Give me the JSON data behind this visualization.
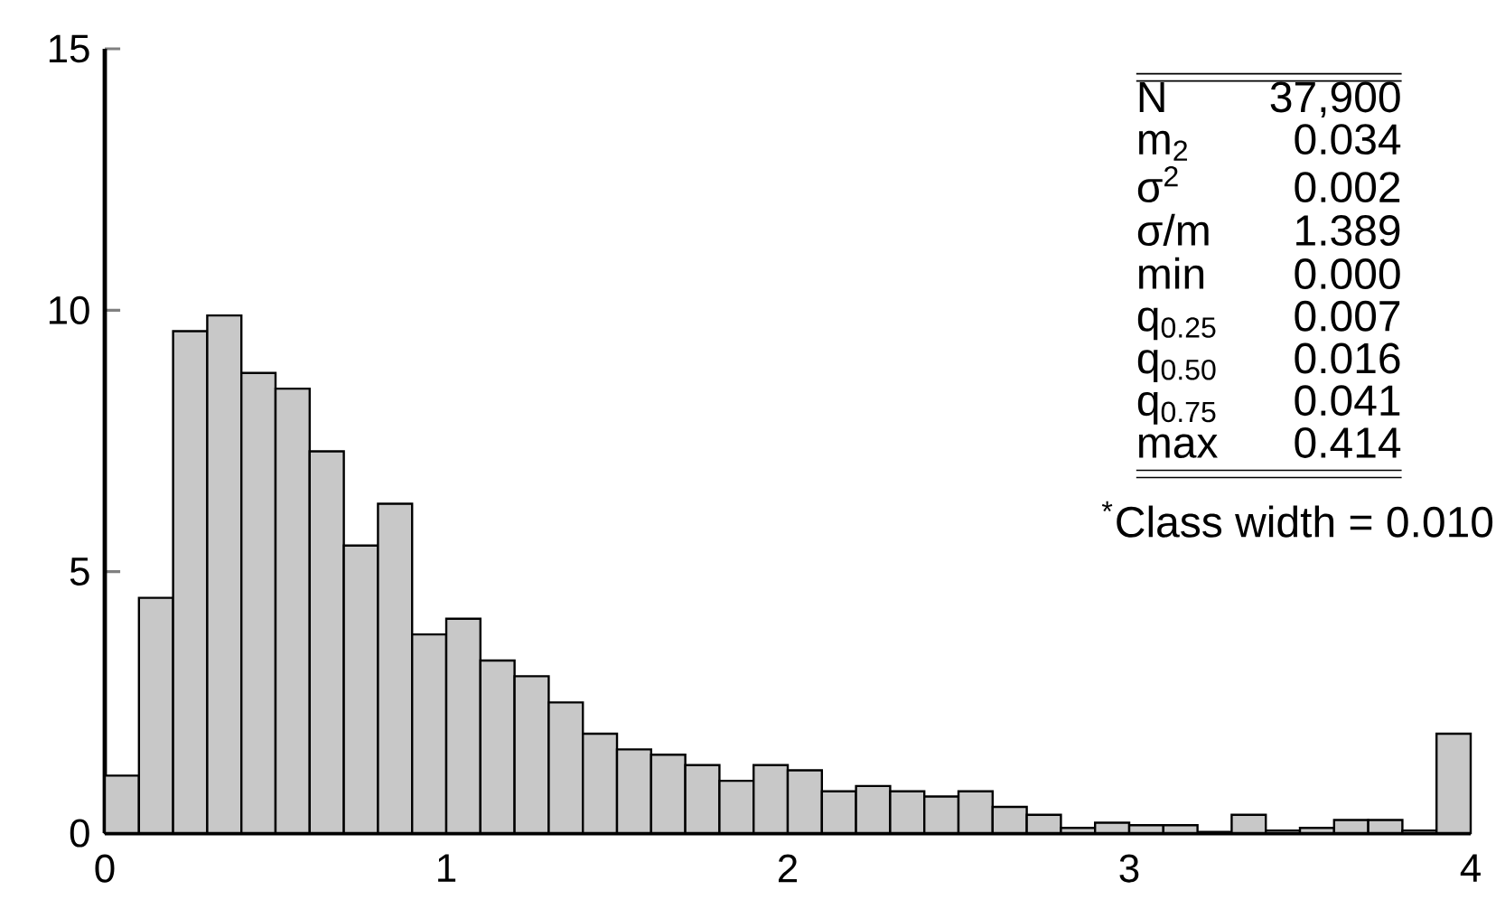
{
  "chart_data": {
    "type": "histogram",
    "bins": [
      0,
      0.1,
      0.2,
      0.3,
      0.4,
      0.5,
      0.6,
      0.7,
      0.8,
      0.9,
      1.0,
      1.1,
      1.2,
      1.3,
      1.4,
      1.5,
      1.6,
      1.7,
      1.8,
      1.9,
      2.0,
      2.1,
      2.2,
      2.3,
      2.4,
      2.5,
      2.6,
      2.7,
      2.8,
      2.9,
      3.0,
      3.1,
      3.2,
      3.3,
      3.4,
      3.5,
      3.6,
      3.7,
      3.8,
      3.9,
      4.0
    ],
    "values": [
      1.1,
      4.5,
      9.6,
      9.9,
      8.8,
      8.5,
      7.3,
      5.5,
      6.3,
      3.8,
      4.1,
      3.3,
      3.0,
      2.5,
      1.9,
      1.6,
      1.5,
      1.3,
      1.0,
      1.3,
      1.2,
      0.8,
      0.9,
      0.8,
      0.7,
      0.8,
      0.5,
      0.35,
      0.1,
      0.2,
      0.15,
      0.15,
      0,
      0.35,
      0.05,
      0.1,
      0.25,
      0.25,
      0.05,
      1.9
    ],
    "color": "#c8c8c8",
    "xlim": [
      0,
      4
    ],
    "xticks": [
      0,
      1,
      2,
      3,
      4
    ],
    "ylim": [
      0,
      15
    ],
    "yticks": [
      0,
      5,
      10,
      15
    ],
    "grid": false,
    "annotations": [
      "N",
      "37,900",
      "m$_{2}$",
      "0.034",
      "σ$^{2}$",
      "0.002",
      "σ/m",
      "1.389",
      "min",
      "0.000",
      "q$_{0.25}$",
      "0.007",
      "q$_{0.50}$",
      "0.016",
      "q$_{0.75}$",
      "0.041",
      "max",
      "0.414",
      "$^{*}$Class width = 0.010"
    ]
  }
}
